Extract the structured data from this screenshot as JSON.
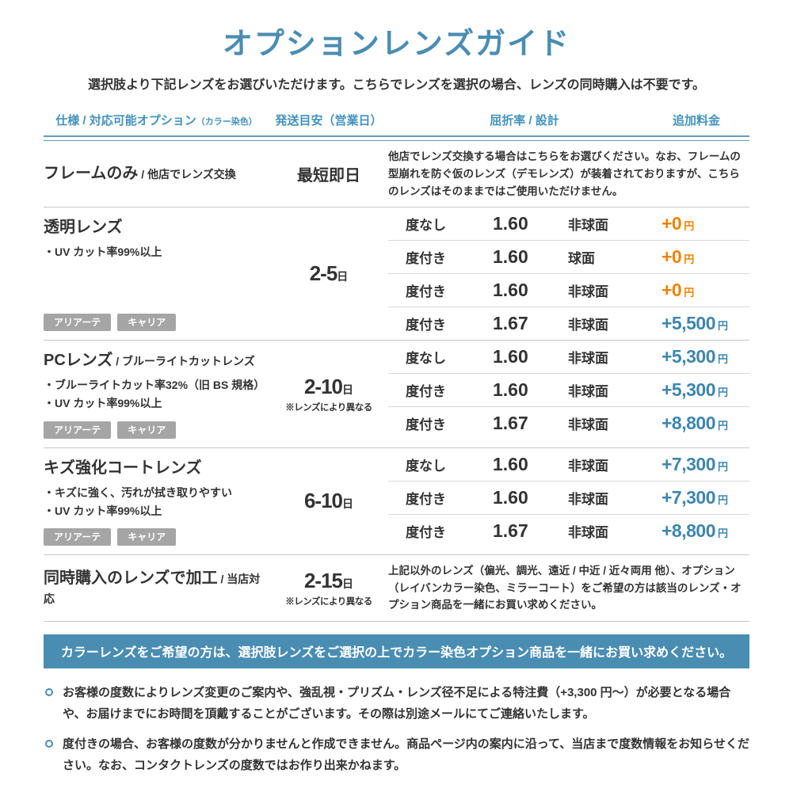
{
  "page": {
    "title": "オプションレンズガイド",
    "subtitle": "選択肢より下記レンズをお選びいただけます。こちらでレンズを選択の場合、レンズの同時購入は不要です。"
  },
  "colors": {
    "accent_teal": "#4a8db2",
    "price_orange": "#f08300",
    "price_blue": "#3e86ad",
    "tag_gray": "#a5a5a5"
  },
  "table": {
    "headers": {
      "spec": "仕様 / 対応可能オプション",
      "spec_note": "（カラー染色）",
      "shipping": "発送目安（営業日）",
      "refraction": "屈折率 / 設計",
      "price": "追加料金"
    },
    "rows": [
      {
        "name": "フレームのみ",
        "name_suffix": "/ 他店でレンズ交換",
        "features": [],
        "tags": [],
        "shipping": {
          "main": "最短即日",
          "unit": "",
          "note": ""
        },
        "description": "他店でレンズ交換する場合はこちらをお選びください。なお、フレームの型崩れを防ぐ仮のレンズ（デモレンズ）が装着されておりますが、こちらのレンズはそのままではご使用いただけません。",
        "options": []
      },
      {
        "name": "透明レンズ",
        "name_suffix": "",
        "features": [
          "・UV カット率99%以上"
        ],
        "tags": [
          "アリアーテ",
          "キャリア"
        ],
        "shipping": {
          "main": "2-5",
          "unit": "日",
          "note": ""
        },
        "description": "",
        "options": [
          {
            "type": "度なし",
            "index": "1.60",
            "design": "非球面",
            "price": "+0",
            "yen": "円",
            "highlight": "orange"
          },
          {
            "type": "度付き",
            "index": "1.60",
            "design": "球面",
            "price": "+0",
            "yen": "円",
            "highlight": "orange"
          },
          {
            "type": "度付き",
            "index": "1.60",
            "design": "非球面",
            "price": "+0",
            "yen": "円",
            "highlight": "orange"
          },
          {
            "type": "度付き",
            "index": "1.67",
            "design": "非球面",
            "price": "+5,500",
            "yen": "円",
            "highlight": "blue"
          }
        ]
      },
      {
        "name": "PCレンズ",
        "name_suffix": "/ ブルーライトカットレンズ",
        "features": [
          "・ブルーライトカット率32%（旧 BS 規格）",
          "・UV カット率99%以上"
        ],
        "tags": [
          "アリアーテ",
          "キャリア"
        ],
        "shipping": {
          "main": "2-10",
          "unit": "日",
          "note": "※レンズにより異なる"
        },
        "description": "",
        "options": [
          {
            "type": "度なし",
            "index": "1.60",
            "design": "非球面",
            "price": "+5,300",
            "yen": "円",
            "highlight": "blue"
          },
          {
            "type": "度付き",
            "index": "1.60",
            "design": "非球面",
            "price": "+5,300",
            "yen": "円",
            "highlight": "blue"
          },
          {
            "type": "度付き",
            "index": "1.67",
            "design": "非球面",
            "price": "+8,800",
            "yen": "円",
            "highlight": "blue"
          }
        ]
      },
      {
        "name": "キズ強化コートレンズ",
        "name_suffix": "",
        "features": [
          "・キズに強く、汚れが拭き取りやすい",
          "・UV カット率99%以上"
        ],
        "tags": [
          "アリアーテ",
          "キャリア"
        ],
        "shipping": {
          "main": "6-10",
          "unit": "日",
          "note": ""
        },
        "description": "",
        "options": [
          {
            "type": "度なし",
            "index": "1.60",
            "design": "非球面",
            "price": "+7,300",
            "yen": "円",
            "highlight": "blue"
          },
          {
            "type": "度付き",
            "index": "1.60",
            "design": "非球面",
            "price": "+7,300",
            "yen": "円",
            "highlight": "blue"
          },
          {
            "type": "度付き",
            "index": "1.67",
            "design": "非球面",
            "price": "+8,800",
            "yen": "円",
            "highlight": "blue"
          }
        ]
      },
      {
        "name": "同時購入のレンズで加工",
        "name_suffix": "/ 当店対応",
        "features": [],
        "tags": [],
        "shipping": {
          "main": "2-15",
          "unit": "日",
          "note": "※レンズにより異なる"
        },
        "description": "上記以外のレンズ（偏光、調光、遠近 / 中近 / 近々両用 他）、オプション（レイバンカラー染色、ミラーコート）をご希望の方は該当のレンズ・オプション商品を一緒にお買い求めください。",
        "options": []
      }
    ]
  },
  "banner": {
    "text": "カラーレンズをご希望の方は、選択肢レンズをご選択の上でカラー染色オプション商品を一緒にお買い求めください。"
  },
  "notes": [
    "お客様の度数によりレンズ変更のご案内や、強乱視・プリズム・レンズ径不足による特注費（+3,300 円〜）が必要となる場合や、お届けまでにお時間を頂戴することがございます。その際は別途メールにてご連絡いたします。",
    "度付きの場合、お客様の度数が分かりませんと作成できません。商品ページ内の案内に沿って、当店まで度数情報をお知らせください。なお、コンタクトレンズの度数ではお作り出来かねます。"
  ]
}
